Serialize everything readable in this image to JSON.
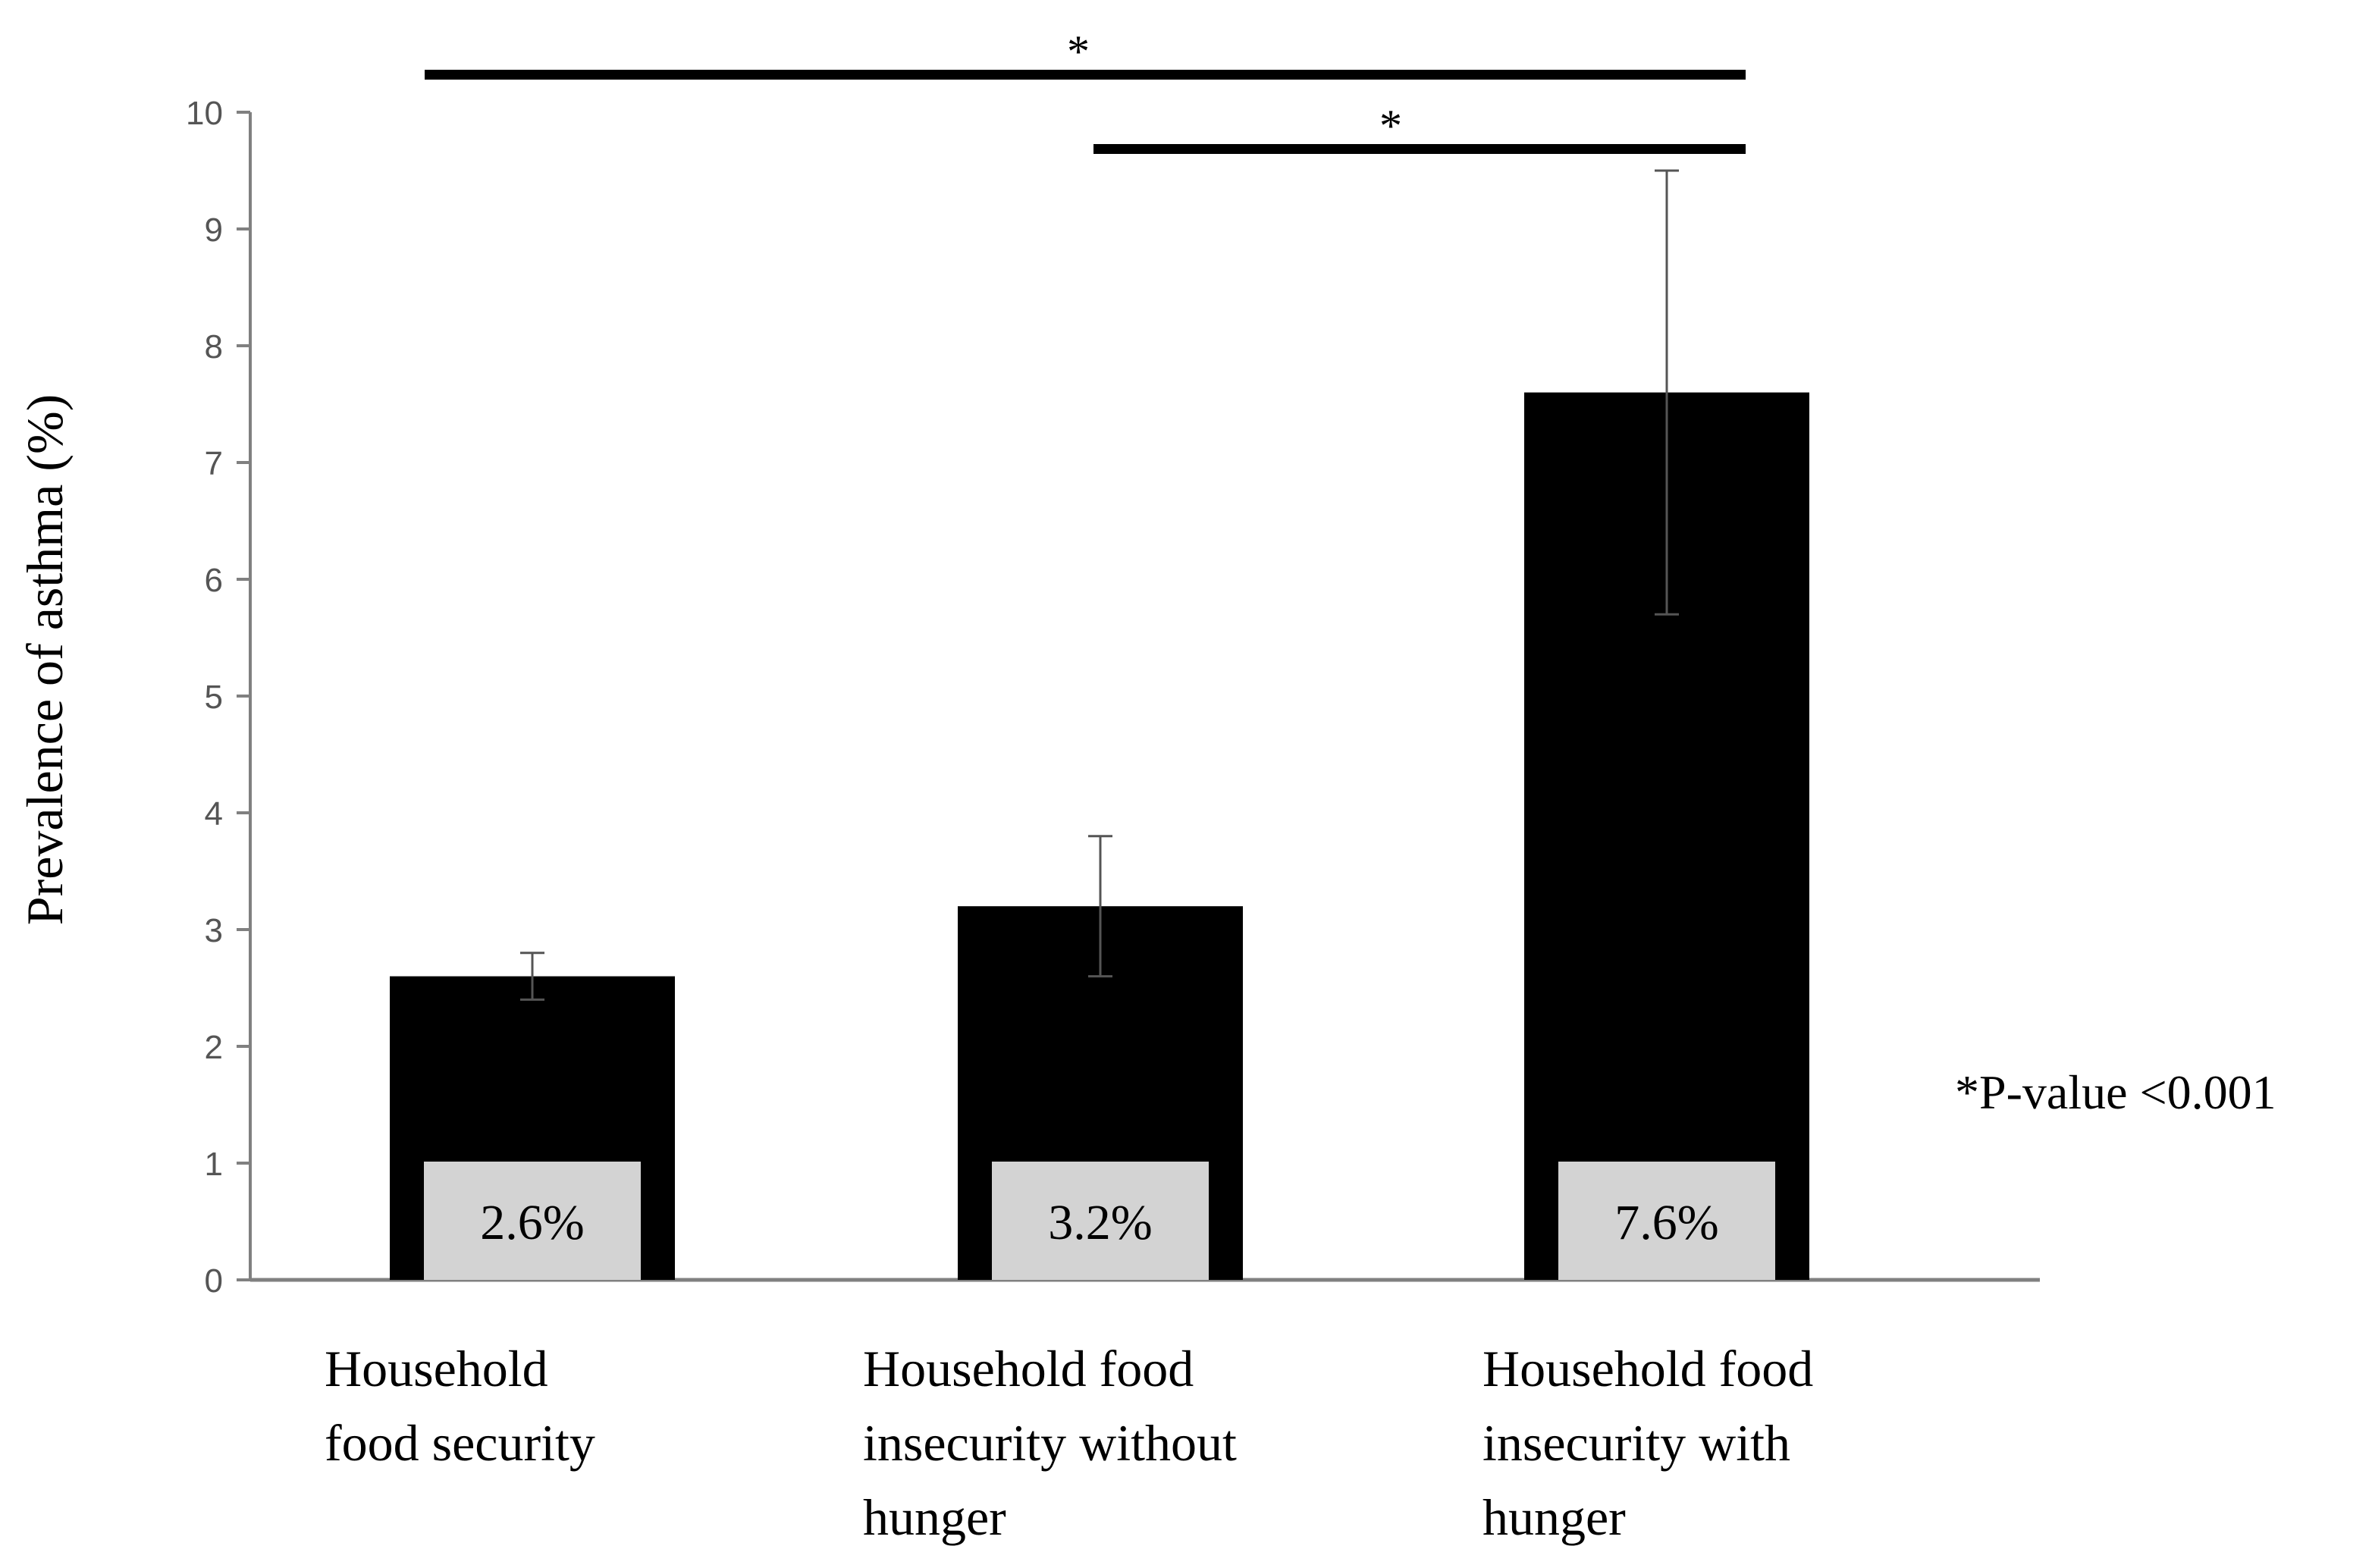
{
  "chart_data": {
    "type": "bar",
    "categories": [
      [
        "Household",
        "food security"
      ],
      [
        "Household food",
        "insecurity without",
        "hunger"
      ],
      [
        "Household food",
        "insecurity with",
        "hunger"
      ]
    ],
    "values": [
      2.6,
      3.2,
      7.6
    ],
    "error_bars": [
      {
        "lower": 2.4,
        "upper": 2.8
      },
      {
        "lower": 2.6,
        "upper": 3.8
      },
      {
        "lower": 5.7,
        "upper": 9.5
      }
    ],
    "data_labels": [
      "2.6%",
      "3.2%",
      "7.6%"
    ],
    "ylabel": "Prevalence of asthma (%)",
    "ylim": [
      0,
      10
    ],
    "yticks": [
      0,
      1,
      2,
      3,
      4,
      5,
      6,
      7,
      8,
      9,
      10
    ],
    "significance": [
      {
        "from": 0,
        "to": 2,
        "label": "*"
      },
      {
        "from": 1,
        "to": 2,
        "label": "*"
      }
    ],
    "note": "*P-value <0.001",
    "colors": {
      "bar": "#000000",
      "label_box": "#d3d3d3",
      "axis": "#808080"
    },
    "grid": false
  }
}
